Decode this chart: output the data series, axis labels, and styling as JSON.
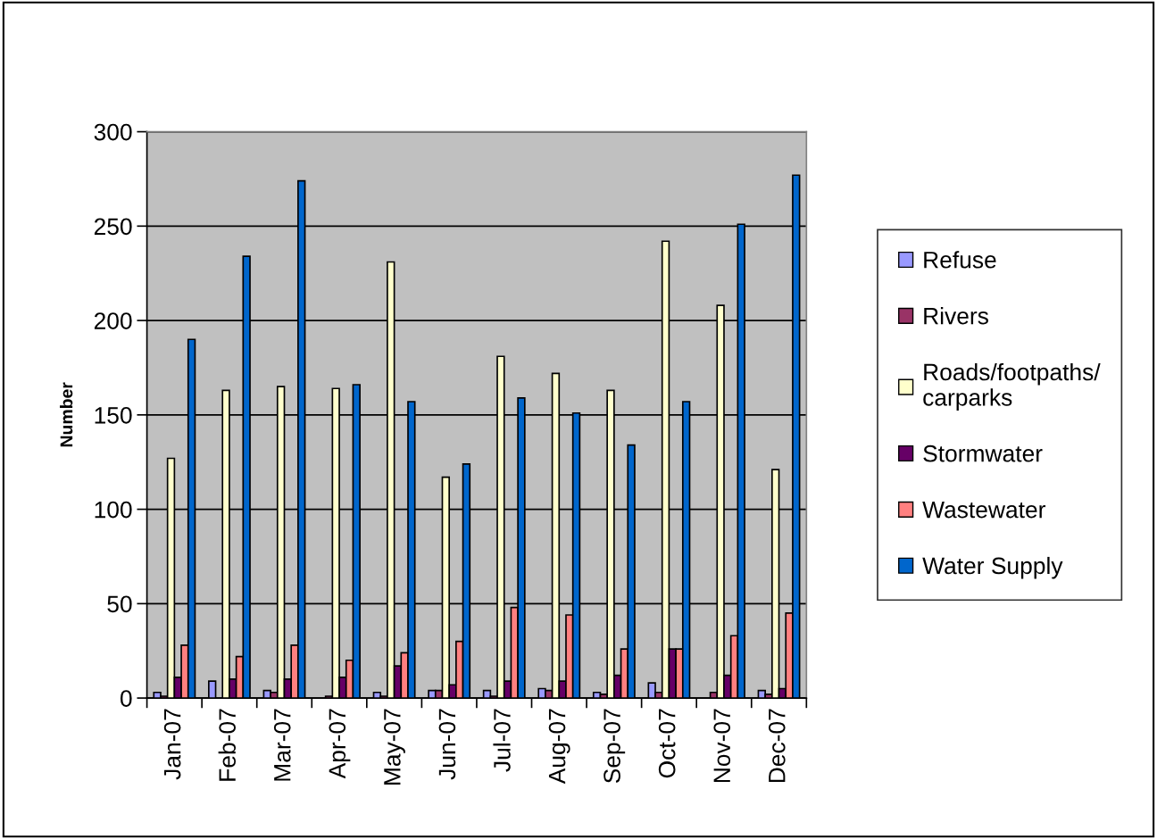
{
  "chart_data": {
    "type": "bar",
    "ylabel": "Number",
    "categories": [
      "Jan-07",
      "Feb-07",
      "Mar-07",
      "Apr-07",
      "May-07",
      "Jun-07",
      "Jul-07",
      "Aug-07",
      "Sep-07",
      "Oct-07",
      "Nov-07",
      "Dec-07"
    ],
    "series": [
      {
        "name": "Refuse",
        "color": "#9999ff",
        "values": [
          3,
          9,
          4,
          0,
          3,
          4,
          4,
          5,
          3,
          8,
          0,
          4
        ]
      },
      {
        "name": "Rivers",
        "color": "#993366",
        "values": [
          1,
          0,
          3,
          1,
          1,
          4,
          1,
          4,
          2,
          3,
          3,
          2
        ]
      },
      {
        "name": "Roads/footpaths/carparks",
        "color": "#ffffcc",
        "values": [
          127,
          163,
          165,
          164,
          231,
          117,
          181,
          172,
          163,
          242,
          208,
          121
        ]
      },
      {
        "name": "Stormwater",
        "color": "#660066",
        "values": [
          11,
          10,
          10,
          11,
          17,
          7,
          9,
          9,
          12,
          26,
          12,
          5
        ]
      },
      {
        "name": "Wastewater",
        "color": "#ff8080",
        "values": [
          28,
          22,
          28,
          20,
          24,
          30,
          48,
          44,
          26,
          26,
          33,
          45
        ]
      },
      {
        "name": "Water Supply",
        "color": "#0066cc",
        "values": [
          190,
          234,
          274,
          166,
          157,
          124,
          159,
          151,
          134,
          157,
          251,
          277
        ]
      }
    ],
    "ylim": [
      0,
      300
    ],
    "yticks": [
      0,
      50,
      100,
      150,
      200,
      250,
      300
    ],
    "grid": "y",
    "legend": "right"
  }
}
